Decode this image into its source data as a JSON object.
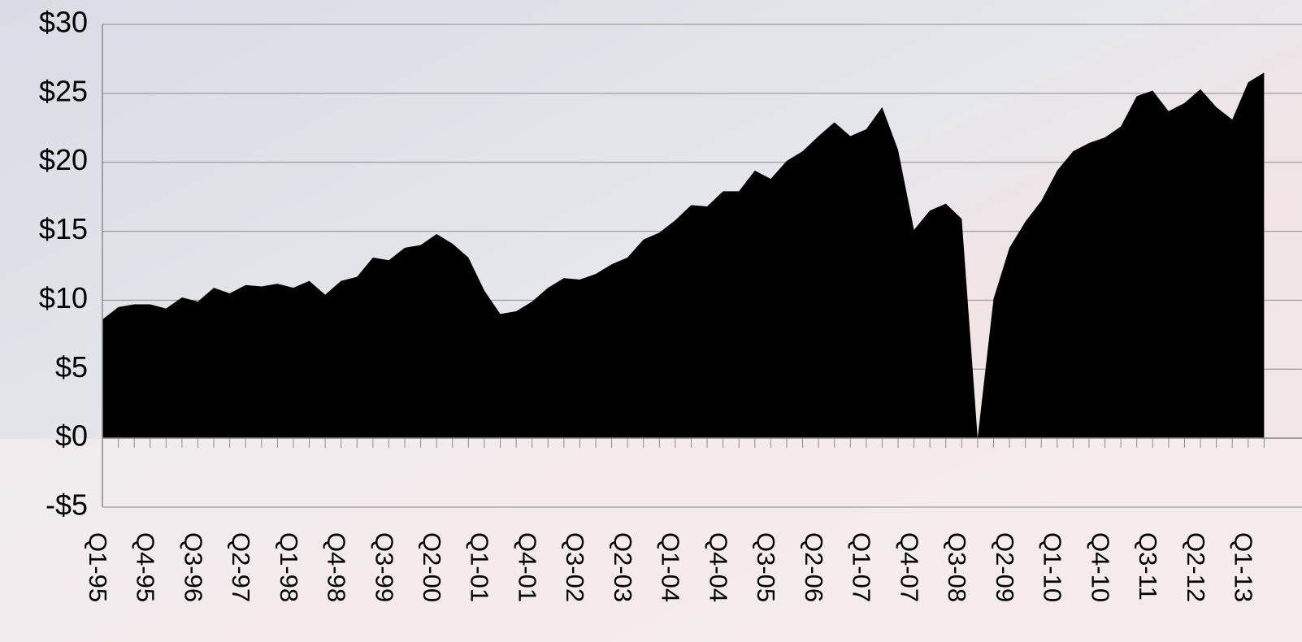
{
  "chart_data": {
    "type": "area",
    "categories": [
      "Q1-95",
      null,
      null,
      "Q4-95",
      null,
      null,
      "Q3-96",
      null,
      null,
      "Q2-97",
      null,
      null,
      "Q1-98",
      null,
      null,
      "Q4-98",
      null,
      null,
      "Q3-99",
      null,
      null,
      "Q2-00",
      null,
      null,
      "Q1-01",
      null,
      null,
      "Q4-01",
      null,
      null,
      "Q3-02",
      null,
      null,
      "Q2-03",
      null,
      null,
      "Q1-04",
      null,
      null,
      "Q4-04",
      null,
      null,
      "Q3-05",
      null,
      null,
      "Q2-06",
      null,
      null,
      "Q1-07",
      null,
      null,
      "Q4-07",
      null,
      null,
      "Q3-08",
      null,
      null,
      "Q2-09",
      null,
      null,
      "Q1-10",
      null,
      null,
      "Q4-10",
      null,
      null,
      "Q3-11",
      null,
      null,
      "Q2-12",
      null,
      null,
      "Q1-13",
      null
    ],
    "values": [
      8.6,
      9.5,
      9.7,
      9.7,
      9.4,
      10.2,
      9.9,
      10.9,
      10.5,
      11.1,
      11.0,
      11.2,
      10.9,
      11.4,
      10.4,
      11.4,
      11.7,
      13.1,
      12.9,
      13.8,
      14.0,
      14.8,
      14.1,
      13.1,
      10.7,
      9.0,
      9.2,
      9.9,
      10.9,
      11.6,
      11.5,
      11.9,
      12.6,
      13.1,
      14.4,
      14.9,
      15.8,
      16.9,
      16.8,
      17.9,
      17.9,
      19.4,
      18.8,
      20.1,
      20.8,
      21.9,
      22.9,
      21.9,
      22.4,
      24.0,
      20.9,
      15.1,
      16.5,
      17.0,
      15.9,
      0,
      10.1,
      13.8,
      15.7,
      17.2,
      19.4,
      20.8,
      21.4,
      21.8,
      22.6,
      24.8,
      25.2,
      23.7,
      24.3,
      25.3,
      24.0,
      23.1,
      25.8,
      26.5
    ],
    "color": "#000000",
    "ylim": [
      -5,
      30
    ],
    "yticks": [
      {
        "value": -5,
        "label": "-$5"
      },
      {
        "value": 0,
        "label": "$0"
      },
      {
        "value": 5,
        "label": "$5"
      },
      {
        "value": 10,
        "label": "$10"
      },
      {
        "value": 15,
        "label": "$15"
      },
      {
        "value": 20,
        "label": "$20"
      },
      {
        "value": 25,
        "label": "$25"
      },
      {
        "value": 30,
        "label": "$30"
      }
    ],
    "grid": true
  }
}
